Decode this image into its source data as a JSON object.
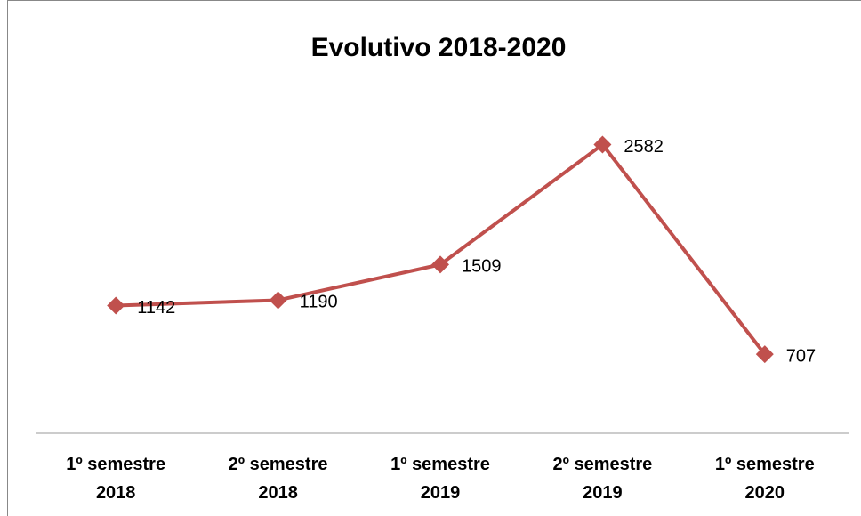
{
  "chart_data": {
    "type": "line",
    "title": "Evolutivo 2018-2020",
    "categories": [
      "1º semestre 2018",
      "2º semestre 2018",
      "1º semestre 2019",
      "2º semestre 2019",
      "1º semestre 2020"
    ],
    "series": [
      {
        "name": "Evolutivo",
        "color": "#c0504d",
        "values": [
          1142,
          1190,
          1509,
          2582,
          707
        ]
      }
    ],
    "ylim": [
      0,
      3000
    ]
  }
}
